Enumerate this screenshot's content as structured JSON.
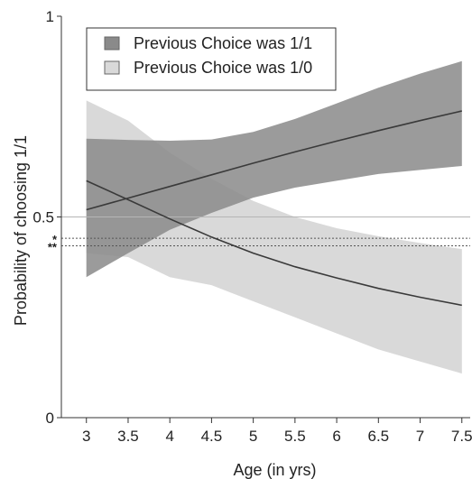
{
  "chart_data": {
    "type": "line",
    "xlabel": "Age (in yrs)",
    "ylabel": "Probability of choosing 1/1",
    "xlim": [
      2.7,
      7.6
    ],
    "ylim": [
      0,
      1
    ],
    "x_ticks": [
      "3",
      "3.5",
      "4",
      "4.5",
      "5",
      "5.5",
      "6",
      "6.5",
      "7",
      "7.5"
    ],
    "x_tick_values": [
      3,
      3.5,
      4,
      4.5,
      5,
      5.5,
      6,
      6.5,
      7,
      7.5
    ],
    "y_ticks": [
      "0",
      "0.5",
      "1"
    ],
    "y_tick_values": [
      0,
      0.5,
      1
    ],
    "reference_line": 0.5,
    "significance_lines": [
      {
        "label": "*",
        "y": 0.447
      },
      {
        "label": "**",
        "y": 0.428
      }
    ],
    "series": [
      {
        "name": "Previous Choice was 1/1",
        "color": "#8a8a8a",
        "line_color": "#3a3a3a",
        "x": [
          3,
          3.5,
          4,
          4.5,
          5,
          5.5,
          6,
          6.5,
          7,
          7.5
        ],
        "values": [
          0.518,
          0.547,
          0.576,
          0.605,
          0.634,
          0.662,
          0.689,
          0.715,
          0.74,
          0.764
        ],
        "ci_upper": [
          0.695,
          0.692,
          0.69,
          0.693,
          0.712,
          0.744,
          0.783,
          0.822,
          0.857,
          0.888
        ],
        "ci_lower": [
          0.35,
          0.41,
          0.468,
          0.51,
          0.548,
          0.573,
          0.59,
          0.607,
          0.617,
          0.627
        ]
      },
      {
        "name": "Previous Choice was 1/0",
        "color": "#d9d9d9",
        "line_color": "#3a3a3a",
        "x": [
          3,
          3.5,
          4,
          4.5,
          5,
          5.5,
          6,
          6.5,
          7,
          7.5
        ],
        "values": [
          0.59,
          0.543,
          0.495,
          0.45,
          0.41,
          0.376,
          0.348,
          0.322,
          0.3,
          0.28
        ],
        "ci_upper": [
          0.79,
          0.74,
          0.66,
          0.595,
          0.54,
          0.5,
          0.472,
          0.452,
          0.435,
          0.42
        ],
        "ci_lower": [
          0.41,
          0.4,
          0.35,
          0.33,
          0.29,
          0.25,
          0.21,
          0.17,
          0.14,
          0.11
        ]
      }
    ],
    "legend_position": "top-left",
    "grid": false
  }
}
